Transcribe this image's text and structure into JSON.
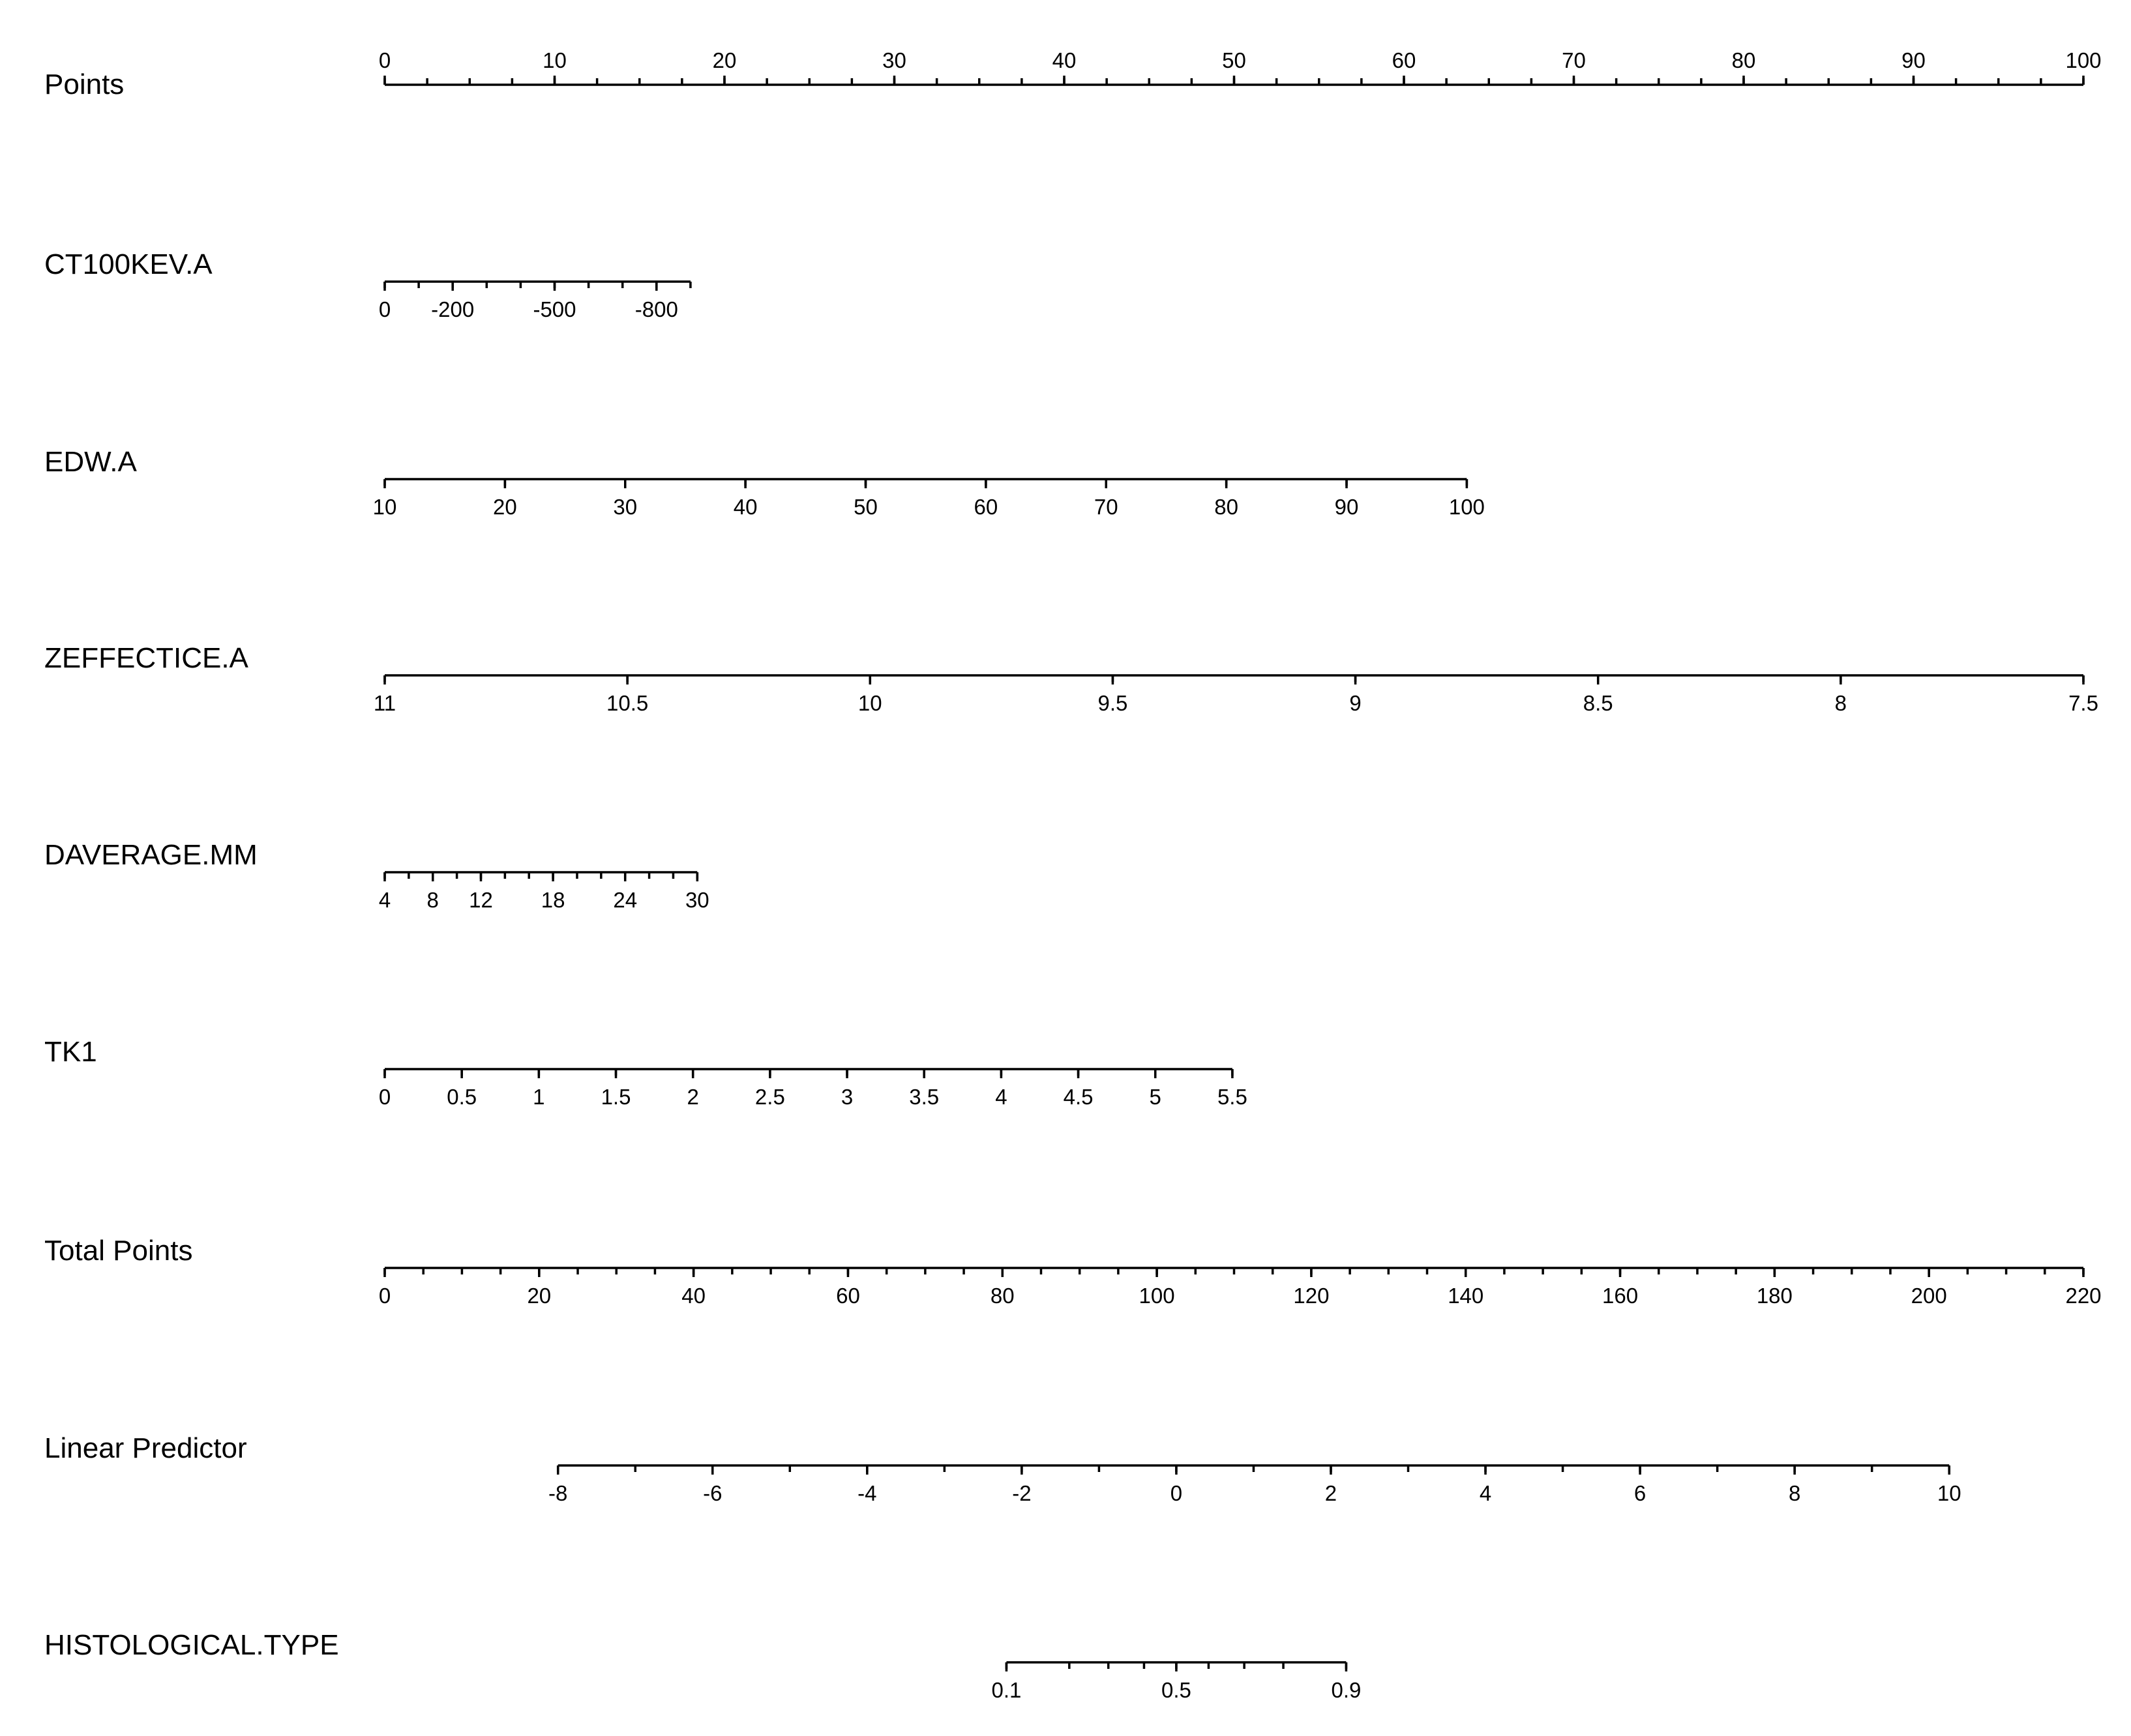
{
  "chart_data": {
    "type": "nomogram",
    "scales": [
      {
        "name": "Points",
        "label": "Points",
        "range": [
          0,
          100
        ],
        "labeled_ticks": [
          {
            "value": 0,
            "label": "0"
          },
          {
            "value": 10,
            "label": "10"
          },
          {
            "value": 20,
            "label": "20"
          },
          {
            "value": 30,
            "label": "30"
          },
          {
            "value": 40,
            "label": "40"
          },
          {
            "value": 50,
            "label": "50"
          },
          {
            "value": 60,
            "label": "60"
          },
          {
            "value": 70,
            "label": "70"
          },
          {
            "value": 80,
            "label": "80"
          },
          {
            "value": 90,
            "label": "90"
          },
          {
            "value": 100,
            "label": "100"
          }
        ],
        "minor_step": 2.5,
        "ticks_above": true
      },
      {
        "name": "CT100KEV.A",
        "label": "CT100KEV.A",
        "points_range": [
          0,
          18
        ],
        "value_range": [
          0,
          -900
        ],
        "labeled_ticks": [
          {
            "value": 0,
            "label": "0"
          },
          {
            "value": -200,
            "label": "-200"
          },
          {
            "value": -500,
            "label": "-500"
          },
          {
            "value": -800,
            "label": "-800"
          }
        ],
        "minor_step": 100
      },
      {
        "name": "EDW.A",
        "label": "EDW.A",
        "points_range": [
          0,
          63.7
        ],
        "value_range": [
          10,
          100
        ],
        "labeled_ticks": [
          {
            "value": 10,
            "label": "10"
          },
          {
            "value": 20,
            "label": "20"
          },
          {
            "value": 30,
            "label": "30"
          },
          {
            "value": 40,
            "label": "40"
          },
          {
            "value": 50,
            "label": "50"
          },
          {
            "value": 60,
            "label": "60"
          },
          {
            "value": 70,
            "label": "70"
          },
          {
            "value": 80,
            "label": "80"
          },
          {
            "value": 90,
            "label": "90"
          },
          {
            "value": 100,
            "label": "100"
          }
        ],
        "minor_step": 10
      },
      {
        "name": "ZEFFECTICE.A",
        "label": "ZEFFECTICE.A",
        "points_range": [
          0,
          100
        ],
        "value_range": [
          11,
          7.5
        ],
        "labeled_ticks": [
          {
            "value": 11,
            "label": "11"
          },
          {
            "value": 10.5,
            "label": "10.5"
          },
          {
            "value": 10,
            "label": "10"
          },
          {
            "value": 9.5,
            "label": "9.5"
          },
          {
            "value": 9,
            "label": "9"
          },
          {
            "value": 8.5,
            "label": "8.5"
          },
          {
            "value": 8,
            "label": "8"
          },
          {
            "value": 7.5,
            "label": "7.5"
          }
        ],
        "minor_step": 0.5
      },
      {
        "name": "DAVERAGE.MM",
        "label": "DAVERAGE.MM",
        "points_range": [
          0,
          18.4
        ],
        "value_range": [
          4,
          30
        ],
        "labeled_ticks": [
          {
            "value": 4,
            "label": "4"
          },
          {
            "value": 8,
            "label": "8"
          },
          {
            "value": 12,
            "label": "12"
          },
          {
            "value": 18,
            "label": "18"
          },
          {
            "value": 24,
            "label": "24"
          },
          {
            "value": 30,
            "label": "30"
          }
        ],
        "minor_step": 2
      },
      {
        "name": "TK1",
        "label": "TK1",
        "points_range": [
          0,
          49.9
        ],
        "value_range": [
          0,
          5.5
        ],
        "labeled_ticks": [
          {
            "value": 0,
            "label": "0"
          },
          {
            "value": 0.5,
            "label": "0.5"
          },
          {
            "value": 1,
            "label": "1"
          },
          {
            "value": 1.5,
            "label": "1.5"
          },
          {
            "value": 2,
            "label": "2"
          },
          {
            "value": 2.5,
            "label": "2.5"
          },
          {
            "value": 3,
            "label": "3"
          },
          {
            "value": 3.5,
            "label": "3.5"
          },
          {
            "value": 4,
            "label": "4"
          },
          {
            "value": 4.5,
            "label": "4.5"
          },
          {
            "value": 5,
            "label": "5"
          },
          {
            "value": 5.5,
            "label": "5.5"
          }
        ],
        "minor_step": 0.5
      },
      {
        "name": "Total Points",
        "label": "Total Points",
        "points_range": [
          0,
          100
        ],
        "value_range": [
          0,
          220
        ],
        "labeled_ticks": [
          {
            "value": 0,
            "label": "0"
          },
          {
            "value": 20,
            "label": "20"
          },
          {
            "value": 40,
            "label": "40"
          },
          {
            "value": 60,
            "label": "60"
          },
          {
            "value": 80,
            "label": "80"
          },
          {
            "value": 100,
            "label": "100"
          },
          {
            "value": 120,
            "label": "120"
          },
          {
            "value": 140,
            "label": "140"
          },
          {
            "value": 160,
            "label": "160"
          },
          {
            "value": 180,
            "label": "180"
          },
          {
            "value": 200,
            "label": "200"
          },
          {
            "value": 220,
            "label": "220"
          }
        ],
        "minor_step": 5
      },
      {
        "name": "Linear Predictor",
        "label": "Linear Predictor",
        "points_range": [
          10.2,
          92.1
        ],
        "value_range": [
          -8,
          10
        ],
        "labeled_ticks": [
          {
            "value": -8,
            "label": "-8"
          },
          {
            "value": -6,
            "label": "-6"
          },
          {
            "value": -4,
            "label": "-4"
          },
          {
            "value": -2,
            "label": "-2"
          },
          {
            "value": 0,
            "label": "0"
          },
          {
            "value": 2,
            "label": "2"
          },
          {
            "value": 4,
            "label": "4"
          },
          {
            "value": 6,
            "label": "6"
          },
          {
            "value": 8,
            "label": "8"
          },
          {
            "value": 10,
            "label": "10"
          }
        ],
        "minor_step": 1
      },
      {
        "name": "HISTOLOGICAL.TYPE",
        "label": "HISTOLOGICAL.TYPE",
        "points_range": [
          36.6,
          56.6
        ],
        "labeled_ticks": [
          {
            "value": 0.1,
            "label": "0.1",
            "points": 36.6
          },
          {
            "value": 0.5,
            "label": "0.5",
            "points": 46.6
          },
          {
            "value": 0.9,
            "label": "0.9",
            "points": 56.6
          }
        ],
        "minor_ticks_points": [
          36.6,
          40.3,
          42.6,
          44.7,
          46.6,
          48.5,
          50.6,
          52.9,
          56.6
        ]
      }
    ]
  }
}
